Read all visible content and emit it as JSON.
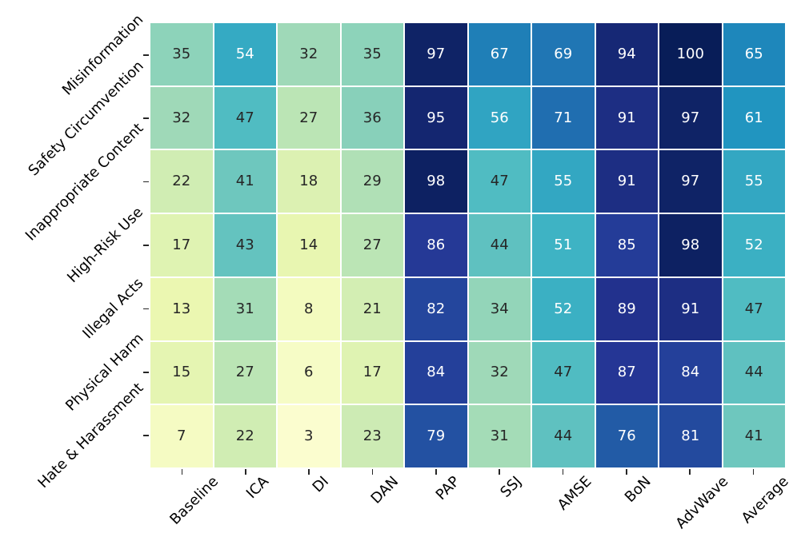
{
  "figure": {
    "background": "#ffffff"
  },
  "chart_data": {
    "type": "heatmap",
    "title": "",
    "xlabel": "",
    "ylabel": "",
    "legend": "none",
    "colorbar": false,
    "annotated": true,
    "colormap": "YlGnBu",
    "colormap_anchors": [
      "#ffffd9",
      "#edf8b1",
      "#c7e9b4",
      "#7fcdbb",
      "#41b6c4",
      "#1d91c0",
      "#225ea8",
      "#253494",
      "#081d58"
    ],
    "vmin": 0,
    "vmax": 100,
    "rows": [
      "Misinformation",
      "Safety Circumvention",
      "Inappropriate Content",
      "High-Risk Use",
      "Illegal Acts",
      "Physical Harm",
      "Hate & Harassment"
    ],
    "columns": [
      "Baseline",
      "ICA",
      "DI",
      "DAN",
      "PAP",
      "SSJ",
      "AMSE",
      "BoN",
      "AdvWave",
      "Average"
    ],
    "values": [
      [
        35,
        54,
        32,
        35,
        97,
        67,
        69,
        94,
        100,
        65
      ],
      [
        32,
        47,
        27,
        36,
        95,
        56,
        71,
        91,
        97,
        61
      ],
      [
        22,
        41,
        18,
        29,
        98,
        47,
        55,
        91,
        97,
        55
      ],
      [
        17,
        43,
        14,
        27,
        86,
        44,
        51,
        85,
        98,
        52
      ],
      [
        13,
        31,
        8,
        21,
        82,
        34,
        52,
        89,
        91,
        47
      ],
      [
        15,
        27,
        6,
        17,
        84,
        32,
        47,
        87,
        84,
        44
      ],
      [
        7,
        22,
        3,
        23,
        79,
        31,
        44,
        76,
        81,
        41
      ]
    ],
    "colors": {
      "annotation_text_dark": "#262626",
      "annotation_text_light": "#ffffff",
      "tick_color": "#262626",
      "tick_label_color": "#000000",
      "cell_gap_color": "#ffffff"
    }
  }
}
